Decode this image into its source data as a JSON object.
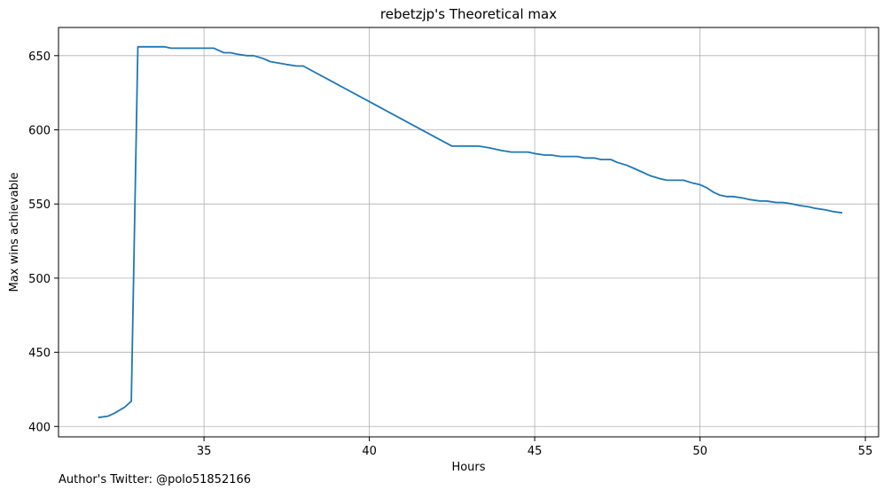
{
  "chart_data": {
    "type": "line",
    "title": "rebetzjp's Theoretical max",
    "xlabel": "Hours",
    "ylabel": "Max wins achievable",
    "xlim": [
      30.6,
      55.4
    ],
    "ylim": [
      393,
      669
    ],
    "xticks": [
      35,
      40,
      45,
      50,
      55
    ],
    "yticks": [
      400,
      450,
      500,
      550,
      600,
      650
    ],
    "grid": true,
    "line_color": "#1f77b4",
    "series": [
      {
        "x": [
          31.8,
          32.1,
          32.3,
          32.6,
          32.8,
          33.0,
          33.3,
          33.6,
          33.8,
          34.0,
          34.5,
          35.0,
          35.3,
          35.6,
          35.8,
          36.0,
          36.3,
          36.5,
          36.8,
          37.0,
          37.5,
          37.8,
          38.0,
          39.0,
          40.0,
          41.0,
          42.0,
          42.5,
          43.0,
          43.3,
          43.6,
          44.0,
          44.3,
          44.5,
          44.8,
          45.0,
          45.3,
          45.5,
          45.8,
          46.0,
          46.3,
          46.5,
          46.8,
          47.0,
          47.3,
          47.5,
          47.8,
          48.0,
          48.3,
          48.5,
          48.8,
          49.0,
          49.3,
          49.5,
          49.8,
          50.0,
          50.2,
          50.4,
          50.6,
          50.8,
          51.0,
          51.3,
          51.5,
          51.8,
          52.0,
          52.3,
          52.5,
          52.8,
          53.0,
          53.3,
          53.5,
          53.8,
          54.0,
          54.3
        ],
        "y": [
          406,
          407,
          409,
          413,
          417,
          656,
          656,
          656,
          656,
          655,
          655,
          655,
          655,
          652,
          652,
          651,
          650,
          650,
          648,
          646,
          644,
          643,
          643,
          631,
          619,
          607,
          595,
          589,
          589,
          589,
          588,
          586,
          585,
          585,
          585,
          584,
          583,
          583,
          582,
          582,
          582,
          581,
          581,
          580,
          580,
          578,
          576,
          574,
          571,
          569,
          567,
          566,
          566,
          566,
          564,
          563,
          561,
          558,
          556,
          555,
          555,
          554,
          553,
          552,
          552,
          551,
          551,
          550,
          549,
          548,
          547,
          546,
          545,
          544
        ]
      }
    ]
  },
  "footer": {
    "credit": "Author's Twitter: @polo51852166"
  }
}
